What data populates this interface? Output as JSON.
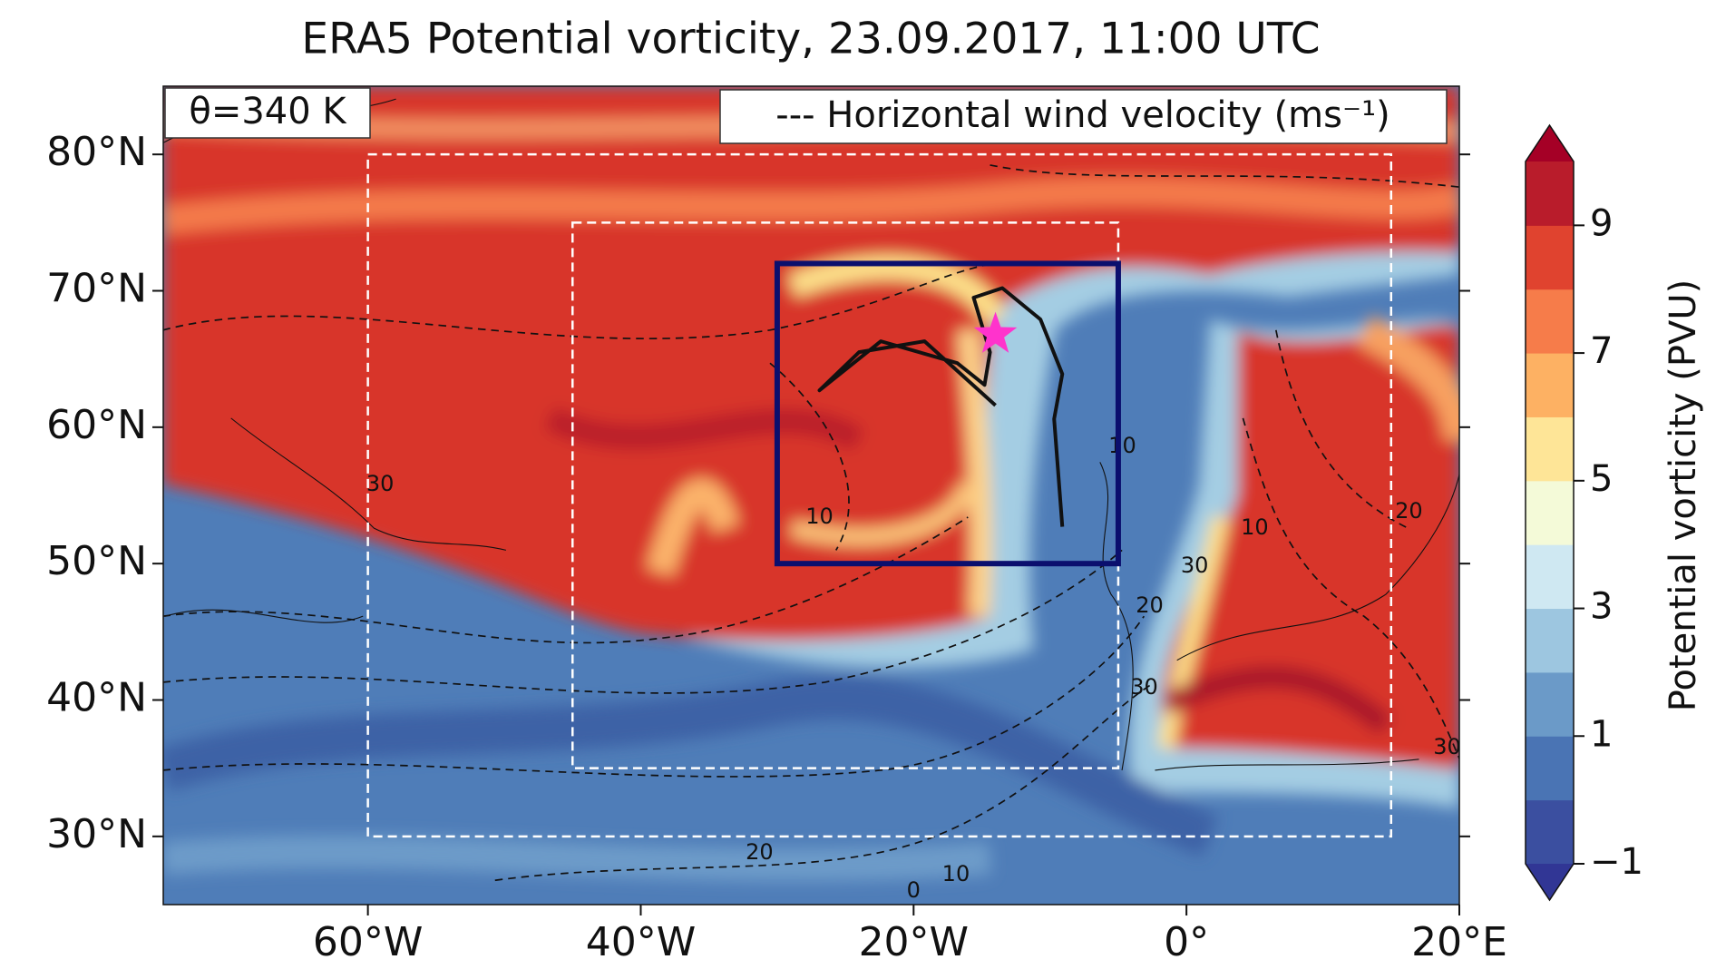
{
  "title": "ERA5 Potential vorticity, 23.09.2017, 11:00 UTC",
  "level_label": "θ=340 K",
  "legend_label": "--- Horizontal wind velocity (ms⁻¹)",
  "extent": {
    "lon": [
      -75,
      20
    ],
    "lat": [
      25,
      85
    ]
  },
  "lon_ticks": [
    {
      "value": -60,
      "label": "60°W"
    },
    {
      "value": -40,
      "label": "40°W"
    },
    {
      "value": -20,
      "label": "20°W"
    },
    {
      "value": 0,
      "label": "0°"
    },
    {
      "value": 20,
      "label": "20°E"
    }
  ],
  "lat_ticks": [
    {
      "value": 30,
      "label": "30°N"
    },
    {
      "value": 40,
      "label": "40°N"
    },
    {
      "value": 50,
      "label": "50°N"
    },
    {
      "value": 60,
      "label": "60°N"
    },
    {
      "value": 70,
      "label": "70°N"
    },
    {
      "value": 80,
      "label": "80°N"
    }
  ],
  "colorbar": {
    "label": "Potential vorticity (PVU)",
    "clim": [
      -1,
      10
    ],
    "ticks": [
      {
        "value": -1,
        "label": "−1"
      },
      1,
      3,
      5,
      7,
      9
    ],
    "colors": [
      "#3b4fa0",
      "#4a74b4",
      "#6b9ac8",
      "#9dc6e0",
      "#cfe8f2",
      "#f4fad8",
      "#fee597",
      "#fdb163",
      "#f67c4a",
      "#e0432f",
      "#b91c2b"
    ],
    "under_color": "#313695",
    "over_color": "#a50026"
  },
  "boxes": [
    {
      "lon": [
        -60,
        15
      ],
      "lat": [
        30,
        80
      ],
      "color": "#ffffff",
      "dashed": true
    },
    {
      "lon": [
        -45,
        -5
      ],
      "lat": [
        35,
        75
      ],
      "color": "#ffffff",
      "dashed": true
    },
    {
      "lon": [
        -30,
        -5
      ],
      "lat": [
        50,
        72
      ],
      "color": "#0b0f6e",
      "dashed": false
    }
  ],
  "star": {
    "lon": -14,
    "lat": 66.8,
    "color": "#ff33cc"
  },
  "flight_track": {
    "lon": [
      -9.1,
      -9.7,
      -9.1,
      -10.7,
      -13.5,
      -15.6,
      -14.4,
      -14.8,
      -16.8,
      -22.4,
      -26.9,
      -24,
      -19.2,
      -14
    ],
    "lat": [
      52.7,
      60.6,
      63.9,
      67.9,
      70.2,
      69.5,
      65.5,
      63.1,
      64.7,
      66.3,
      62.7,
      65.5,
      66.3,
      61.6
    ]
  },
  "contour_labels": [
    {
      "value": 30,
      "lon": -59.1,
      "lat": 55.8
    },
    {
      "value": 10,
      "lon": -26.9,
      "lat": 53.4
    },
    {
      "value": 10,
      "lon": -4.7,
      "lat": 58.6
    },
    {
      "value": 30,
      "lon": 0.6,
      "lat": 49.8
    },
    {
      "value": 20,
      "lon": -2.7,
      "lat": 46.9
    },
    {
      "value": 10,
      "lon": 5,
      "lat": 52.6
    },
    {
      "value": 20,
      "lon": 16.3,
      "lat": 53.8
    },
    {
      "value": 30,
      "lon": -3.1,
      "lat": 40.9
    },
    {
      "value": 30,
      "lon": 19.1,
      "lat": 36.5
    },
    {
      "value": 20,
      "lon": -31.3,
      "lat": 28.8
    },
    {
      "value": 10,
      "lon": -16.9,
      "lat": 27.2
    },
    {
      "value": 0,
      "lon": -20,
      "lat": 26
    }
  ]
}
